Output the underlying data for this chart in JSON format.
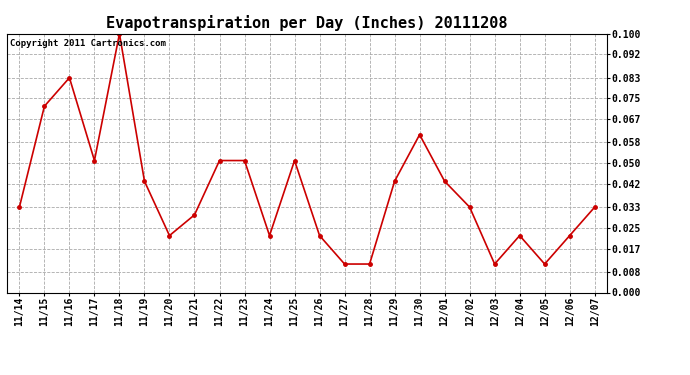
{
  "title": "Evapotranspiration per Day (Inches) 20111208",
  "copyright_text": "Copyright 2011 Cartronics.com",
  "dates": [
    "11/14",
    "11/15",
    "11/16",
    "11/17",
    "11/18",
    "11/19",
    "11/20",
    "11/21",
    "11/22",
    "11/23",
    "11/24",
    "11/25",
    "11/26",
    "11/27",
    "11/28",
    "11/29",
    "11/30",
    "12/01",
    "12/02",
    "12/03",
    "12/04",
    "12/05",
    "12/06",
    "12/07"
  ],
  "values": [
    0.033,
    0.072,
    0.083,
    0.051,
    0.1,
    0.043,
    0.022,
    0.03,
    0.051,
    0.051,
    0.022,
    0.051,
    0.022,
    0.011,
    0.011,
    0.043,
    0.061,
    0.043,
    0.033,
    0.011,
    0.022,
    0.011,
    0.022,
    0.033
  ],
  "line_color": "#cc0000",
  "marker": "o",
  "marker_color": "#cc0000",
  "bg_color": "#ffffff",
  "grid_color": "#aaaaaa",
  "ylim": [
    0.0,
    0.1
  ],
  "yticks": [
    0.0,
    0.008,
    0.017,
    0.025,
    0.033,
    0.042,
    0.05,
    0.058,
    0.067,
    0.075,
    0.083,
    0.092,
    0.1
  ],
  "title_fontsize": 11,
  "copyright_fontsize": 6.5,
  "tick_fontsize": 7,
  "axis_label_fontweight": "bold"
}
